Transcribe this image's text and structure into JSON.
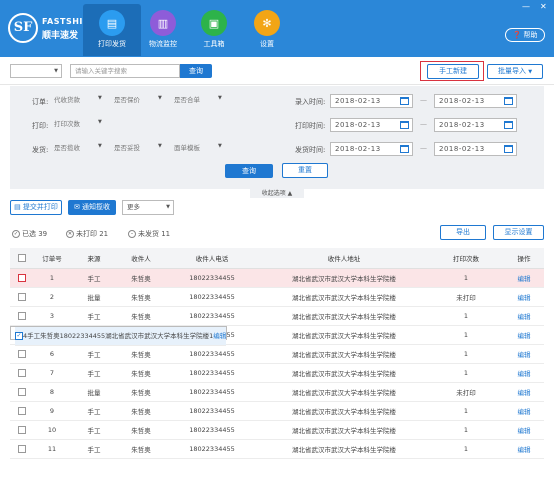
{
  "brand": {
    "logo": "SF",
    "en": "FASTSHIP",
    "cn": "顺丰速发"
  },
  "nav": [
    {
      "label": "打印发货",
      "icon": "printer-icon",
      "color": "#2b9cf0",
      "glyph": "▤"
    },
    {
      "label": "物流监控",
      "icon": "monitor-icon",
      "color": "#8e5cd9",
      "glyph": "▥"
    },
    {
      "label": "工具箱",
      "icon": "toolbox-icon",
      "color": "#2db34a",
      "glyph": "▣"
    },
    {
      "label": "设置",
      "icon": "gear-icon",
      "color": "#f2a516",
      "glyph": "✻"
    }
  ],
  "window": {
    "minimize": "—",
    "close": "✕"
  },
  "help": "帮助",
  "search": {
    "placeholder": "请输入关键字搜索",
    "button": "查询"
  },
  "actions": {
    "manual_create": "手工新建",
    "batch_import": "批量导入"
  },
  "filters": {
    "order_label": "订单:",
    "order_selects": [
      "代收货款",
      "是否保价",
      "是否合单"
    ],
    "print_label": "打印:",
    "print_select": "打印次数",
    "ship_label": "发货:",
    "ship_selects": [
      "是否揽收",
      "是否妥投",
      "面单模板"
    ],
    "import_time_label": "录入时间:",
    "print_time_label": "打印时间:",
    "ship_time_label": "发货时间:",
    "date": "2018-02-13",
    "dash": "—",
    "query": "查询",
    "reset": "重置",
    "collapse": "收起选项 ▲"
  },
  "toolbar": {
    "submit_print": "提交并打印",
    "notify": "通知揽收",
    "more": "更多"
  },
  "status_tabs": {
    "selected": "已选 39",
    "unprinted": "未打印 21",
    "unshipped": "未发货 11"
  },
  "export": "导出",
  "display_settings": "显示设置",
  "table": {
    "headers": [
      "订单号",
      "来源",
      "收件人",
      "收件人电话",
      "收件人地址",
      "打印次数",
      "操作"
    ],
    "rows": [
      {
        "no": "1",
        "src": "手工",
        "name": "朱哲奥",
        "phone": "18022334455",
        "addr": "湖北省武汉市武汉大学本科生学院楼",
        "prints": "1",
        "op": "编辑"
      },
      {
        "no": "2",
        "src": "批量",
        "name": "朱哲奥",
        "phone": "18022334455",
        "addr": "湖北省武汉市武汉大学本科生学院楼",
        "prints": "未打印",
        "op": "编辑"
      },
      {
        "no": "3",
        "src": "手工",
        "name": "朱哲奥",
        "phone": "18022334455",
        "addr": "湖北省武汉市武汉大学本科生学院楼",
        "prints": "1",
        "op": "编辑"
      },
      {
        "no": "4",
        "src": "手工",
        "name": "朱哲奥",
        "phone": "18022334455",
        "addr": "湖北省武汉市武汉大学本科生学院楼",
        "prints": "1",
        "op": "编辑"
      },
      {
        "no": "5",
        "src": "手工",
        "name": "朱哲奥",
        "phone": "18022334455",
        "addr": "湖北省武汉市武汉大学本科生学院楼",
        "prints": "1",
        "op": "编辑"
      },
      {
        "no": "6",
        "src": "手工",
        "name": "朱哲奥",
        "phone": "18022334455",
        "addr": "湖北省武汉市武汉大学本科生学院楼",
        "prints": "1",
        "op": "编辑"
      },
      {
        "no": "7",
        "src": "手工",
        "name": "朱哲奥",
        "phone": "18022334455",
        "addr": "湖北省武汉市武汉大学本科生学院楼",
        "prints": "1",
        "op": "编辑"
      },
      {
        "no": "8",
        "src": "批量",
        "name": "朱哲奥",
        "phone": "18022334455",
        "addr": "湖北省武汉市武汉大学本科生学院楼",
        "prints": "未打印",
        "op": "编辑"
      },
      {
        "no": "9",
        "src": "手工",
        "name": "朱哲奥",
        "phone": "18022334455",
        "addr": "湖北省武汉市武汉大学本科生学院楼",
        "prints": "1",
        "op": "编辑"
      },
      {
        "no": "10",
        "src": "手工",
        "name": "朱哲奥",
        "phone": "18022334455",
        "addr": "湖北省武汉市武汉大学本科生学院楼",
        "prints": "1",
        "op": "编辑"
      },
      {
        "no": "11",
        "src": "手工",
        "name": "朱哲奥",
        "phone": "18022334455",
        "addr": "湖北省武汉市武汉大学本科生学院楼",
        "prints": "1",
        "op": "编辑"
      }
    ]
  }
}
